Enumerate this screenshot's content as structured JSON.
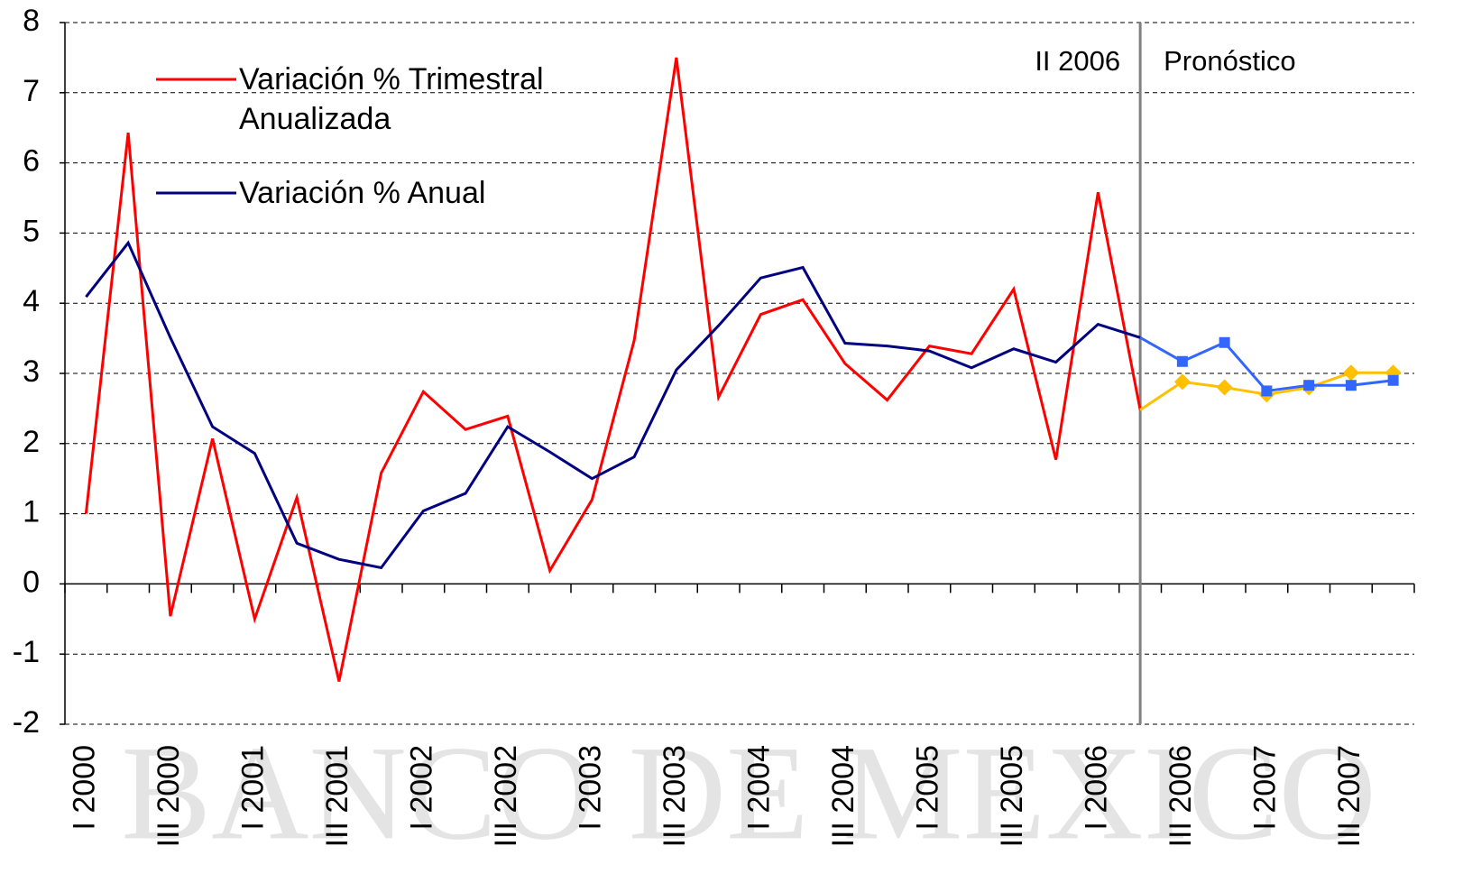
{
  "chart_data": {
    "type": "line",
    "watermark": "BANCO DE MEXICO",
    "categories": [
      "I 2000",
      null,
      "III 2000",
      null,
      "I 2001",
      null,
      "III 2001",
      null,
      "I 2002",
      null,
      "III 2002",
      null,
      "I 2003",
      null,
      "III 2003",
      null,
      "I 2004",
      null,
      "III 2004",
      null,
      "I 2005",
      null,
      "III 2005",
      null,
      "I 2006",
      null,
      "III 2006",
      null,
      "I 2007",
      null,
      "III 2007",
      null
    ],
    "series": [
      {
        "name": "Variación % Trimestral Anualizada",
        "color": "#ff0000",
        "marker": "none",
        "values": [
          1.0,
          6.43,
          -0.46,
          2.07,
          -0.5,
          1.23,
          -1.39,
          1.58,
          2.74,
          2.2,
          2.39,
          0.19,
          1.2,
          3.47,
          7.5,
          2.66,
          3.84,
          4.05,
          3.14,
          2.62,
          3.39,
          3.28,
          4.2,
          1.77,
          5.58,
          2.48,
          null,
          null,
          null,
          null,
          null,
          null
        ]
      },
      {
        "name": "Variación % Anual",
        "color": "#000080",
        "marker": "none",
        "values": [
          4.09,
          4.86,
          3.51,
          2.24,
          1.86,
          0.58,
          0.35,
          0.23,
          1.04,
          1.29,
          2.24,
          1.88,
          1.5,
          1.81,
          3.05,
          3.68,
          4.36,
          4.51,
          3.43,
          3.39,
          3.32,
          3.08,
          3.35,
          3.16,
          3.7,
          3.51,
          null,
          null,
          null,
          null,
          null,
          null
        ]
      },
      {
        "color": "#ffc000",
        "marker": "diamond",
        "values": [
          null,
          null,
          null,
          null,
          null,
          null,
          null,
          null,
          null,
          null,
          null,
          null,
          null,
          null,
          null,
          null,
          null,
          null,
          null,
          null,
          null,
          null,
          null,
          null,
          null,
          null,
          2.88,
          2.8,
          2.7,
          2.8,
          3.01,
          3.01
        ]
      },
      {
        "color": "#3366ff",
        "marker": "square",
        "values": [
          null,
          null,
          null,
          null,
          null,
          null,
          null,
          null,
          null,
          null,
          null,
          null,
          null,
          null,
          null,
          null,
          null,
          null,
          null,
          null,
          null,
          null,
          null,
          null,
          null,
          null,
          3.17,
          3.44,
          2.75,
          2.83,
          2.83,
          2.9
        ]
      }
    ],
    "divider": {
      "index": 25,
      "label_left": "II 2006",
      "label_right": "Pronóstico"
    },
    "ylim": [
      -2,
      8
    ],
    "yticks": [
      -2,
      -1,
      0,
      1,
      2,
      3,
      4,
      5,
      6,
      7,
      8
    ],
    "grid": true
  }
}
